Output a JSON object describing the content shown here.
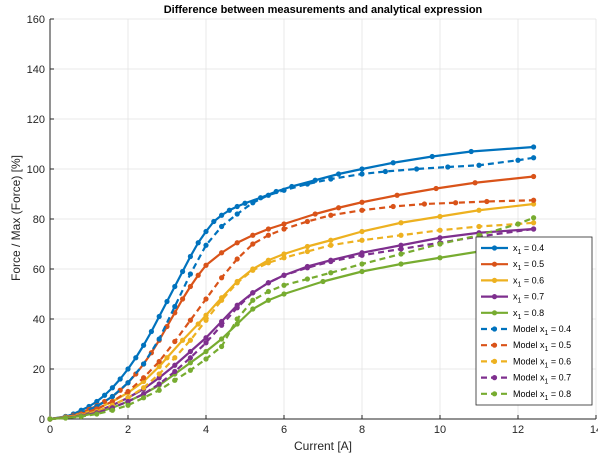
{
  "chart_data": {
    "type": "line",
    "title": "Difference between measurements  and analytical expression",
    "xlabel": "Current [A]",
    "ylabel": "Force / Max (Force) [%]",
    "xlim": [
      0,
      14
    ],
    "ylim": [
      0,
      160
    ],
    "xticks": [
      0,
      2,
      4,
      6,
      8,
      10,
      12,
      14
    ],
    "yticks": [
      0,
      20,
      40,
      60,
      80,
      100,
      120,
      140,
      160
    ],
    "xtick_labels": [
      "0",
      "2",
      "4",
      "6",
      "8",
      "10",
      "12",
      "14"
    ],
    "ytick_labels": [
      "0",
      "20",
      "40",
      "60",
      "80",
      "100",
      "120",
      "140",
      "160"
    ],
    "grid": true,
    "legend_position": "bottom-right",
    "series": [
      {
        "label_main": "x",
        "label_sub": "1",
        "label_rest": " = 0.4",
        "color": "#0072BD",
        "dashed": false,
        "x": [
          0,
          0.4,
          0.6,
          0.8,
          1.0,
          1.2,
          1.4,
          1.6,
          1.8,
          2.0,
          2.2,
          2.4,
          2.6,
          2.8,
          3.0,
          3.2,
          3.4,
          3.6,
          3.8,
          4.0,
          4.2,
          4.4,
          4.6,
          4.8,
          5.0,
          5.4,
          5.8,
          6.2,
          6.8,
          7.4,
          8.0,
          8.8,
          9.8,
          10.8,
          12.4
        ],
        "y": [
          0,
          1,
          2,
          3.5,
          5,
          7,
          9.5,
          12.5,
          16,
          20,
          24.5,
          29.5,
          35,
          41,
          47,
          53,
          59,
          65,
          70.5,
          75,
          79,
          81.5,
          83.5,
          85,
          86.3,
          88.5,
          91,
          93,
          95.5,
          98,
          100,
          102.5,
          105,
          107,
          108.8
        ]
      },
      {
        "label_main": "x",
        "label_sub": "1",
        "label_rest": " = 0.5",
        "color": "#D95319",
        "dashed": false,
        "x": [
          0,
          0.4,
          0.6,
          0.8,
          1.0,
          1.2,
          1.4,
          1.6,
          1.8,
          2.0,
          2.2,
          2.4,
          2.6,
          2.8,
          3.0,
          3.2,
          3.4,
          3.6,
          3.8,
          4.0,
          4.4,
          4.8,
          5.2,
          5.6,
          6.0,
          6.8,
          7.4,
          8.0,
          8.9,
          9.9,
          10.9,
          12.4
        ],
        "y": [
          0,
          0.8,
          1.5,
          2.5,
          3.8,
          5.3,
          7,
          9,
          11.5,
          14.5,
          18,
          22,
          26.5,
          31.5,
          37,
          42.5,
          48,
          53,
          57.5,
          61.5,
          66.5,
          70.5,
          73.5,
          76,
          78,
          82,
          84.5,
          86.7,
          89.5,
          92.2,
          94.5,
          97
        ]
      },
      {
        "label_main": "x",
        "label_sub": "1",
        "label_rest": " = 0.6",
        "color": "#EDB120",
        "dashed": false,
        "x": [
          0,
          0.4,
          0.8,
          1.2,
          1.6,
          2.0,
          2.4,
          2.8,
          3.0,
          3.4,
          3.8,
          4.0,
          4.4,
          4.8,
          5.2,
          5.6,
          6.0,
          6.6,
          7.2,
          8.0,
          9.0,
          10.0,
          11.0,
          12.4
        ],
        "y": [
          0,
          0.7,
          2,
          4,
          7,
          10.5,
          15,
          21,
          24.5,
          31.5,
          38,
          41.5,
          48.5,
          55,
          60,
          63.5,
          66,
          69,
          71.5,
          75,
          78.5,
          81,
          83.5,
          86
        ]
      },
      {
        "label_main": "x",
        "label_sub": "1",
        "label_rest": " = 0.7",
        "color": "#7E2F8E",
        "dashed": false,
        "x": [
          0,
          0.4,
          0.8,
          1.2,
          1.6,
          2.0,
          2.4,
          2.8,
          3.2,
          3.6,
          4.0,
          4.4,
          4.8,
          5.2,
          5.6,
          6.0,
          6.6,
          7.2,
          8.0,
          9.0,
          10.0,
          11.0,
          12.4
        ],
        "y": [
          0,
          0.6,
          1.5,
          3,
          5.5,
          8.5,
          12,
          16.5,
          21.5,
          27,
          32.5,
          39,
          45.5,
          50.5,
          54.5,
          57.5,
          61,
          63.5,
          66.5,
          69.5,
          72.5,
          74.5,
          76
        ]
      },
      {
        "label_main": "x",
        "label_sub": "1",
        "label_rest": " = 0.8",
        "color": "#77AC30",
        "dashed": false,
        "x": [
          0,
          0.4,
          0.8,
          1.2,
          1.6,
          2.0,
          2.4,
          2.8,
          3.2,
          3.6,
          4.0,
          4.4,
          4.8,
          5.2,
          5.6,
          6.0,
          7.0,
          8.0,
          9.0,
          10.0,
          11.0,
          12.4
        ],
        "y": [
          0,
          0.5,
          1.2,
          2.5,
          4.5,
          7,
          10,
          13.5,
          18,
          22.5,
          27,
          32,
          38,
          44,
          47.5,
          50,
          55,
          59,
          62,
          64.5,
          67,
          69.5
        ]
      },
      {
        "label_main": "Model x",
        "label_sub": "1",
        "label_rest": " = 0.4",
        "color": "#0072BD",
        "dashed": true,
        "x": [
          0,
          0.4,
          0.8,
          1.2,
          1.6,
          2.0,
          2.4,
          2.8,
          3.2,
          3.6,
          4.0,
          4.4,
          4.8,
          5.2,
          5.6,
          6.0,
          6.6,
          7.2,
          8.0,
          8.6,
          9.4,
          10.2,
          11.0,
          12.0,
          12.4
        ],
        "y": [
          0,
          1,
          2.5,
          5,
          9,
          14.5,
          22,
          32,
          45,
          58,
          69.5,
          77,
          82,
          86.5,
          89.5,
          91.5,
          94,
          96,
          98,
          99,
          100,
          100.8,
          101.5,
          103.5,
          104.5
        ]
      },
      {
        "label_main": "Model x",
        "label_sub": "1",
        "label_rest": " = 0.5",
        "color": "#D95319",
        "dashed": true,
        "x": [
          0,
          0.4,
          0.8,
          1.2,
          1.6,
          2.0,
          2.4,
          2.8,
          3.2,
          3.6,
          4.0,
          4.4,
          4.8,
          5.2,
          5.6,
          6.0,
          6.6,
          7.2,
          8.0,
          8.8,
          9.6,
          10.4,
          11.2,
          12.4
        ],
        "y": [
          0,
          0.8,
          2,
          4,
          7,
          11,
          16.5,
          23,
          31,
          39.5,
          48,
          56.5,
          64,
          70,
          73.5,
          76,
          79,
          81.5,
          83.5,
          85,
          86,
          86.5,
          87,
          87.5
        ]
      },
      {
        "label_main": "Model x",
        "label_sub": "1",
        "label_rest": " = 0.6",
        "color": "#EDB120",
        "dashed": true,
        "x": [
          0,
          0.4,
          0.8,
          1.2,
          1.6,
          2.0,
          2.4,
          2.8,
          3.2,
          3.6,
          4.0,
          4.4,
          4.8,
          5.2,
          5.6,
          6.0,
          6.6,
          7.2,
          8.0,
          9.0,
          10.0,
          11.0,
          12.0,
          12.4
        ],
        "y": [
          0,
          0.7,
          1.5,
          3,
          5.5,
          8.5,
          12.5,
          18,
          24.5,
          31.5,
          39.5,
          47.5,
          54.5,
          59.5,
          62.5,
          64.5,
          67,
          69.5,
          71.5,
          73.5,
          75.5,
          77,
          78,
          78.5
        ]
      },
      {
        "label_main": "Model x",
        "label_sub": "1",
        "label_rest": " = 0.7",
        "color": "#7E2F8E",
        "dashed": true,
        "x": [
          0,
          0.4,
          0.8,
          1.2,
          1.6,
          2.0,
          2.4,
          2.8,
          3.2,
          3.6,
          4.0,
          4.4,
          4.8,
          5.2,
          5.6,
          6.0,
          6.6,
          7.2,
          8.0,
          9.0,
          10.0,
          11.0,
          12.4
        ],
        "y": [
          0,
          0.5,
          1.2,
          2.5,
          4.5,
          7,
          10,
          14,
          19,
          24.5,
          30.5,
          37.5,
          44.5,
          50.5,
          54.5,
          57.5,
          60.5,
          63,
          65.5,
          68,
          70.5,
          73,
          76
        ]
      },
      {
        "label_main": "Model x",
        "label_sub": "1",
        "label_rest": " = 0.8",
        "color": "#77AC30",
        "dashed": true,
        "x": [
          0,
          0.4,
          0.8,
          1.2,
          1.6,
          2.0,
          2.4,
          2.8,
          3.2,
          3.6,
          4.0,
          4.4,
          4.8,
          5.2,
          5.6,
          6.0,
          6.6,
          7.2,
          8.0,
          9.0,
          10.0,
          11.0,
          12.0,
          12.4
        ],
        "y": [
          0,
          0.4,
          1,
          2,
          3.5,
          5.5,
          8.5,
          11.5,
          15.5,
          19.5,
          24,
          29,
          40,
          47.5,
          51,
          53.5,
          56,
          58.5,
          62,
          66,
          70,
          73.5,
          78,
          80.5
        ]
      }
    ]
  }
}
